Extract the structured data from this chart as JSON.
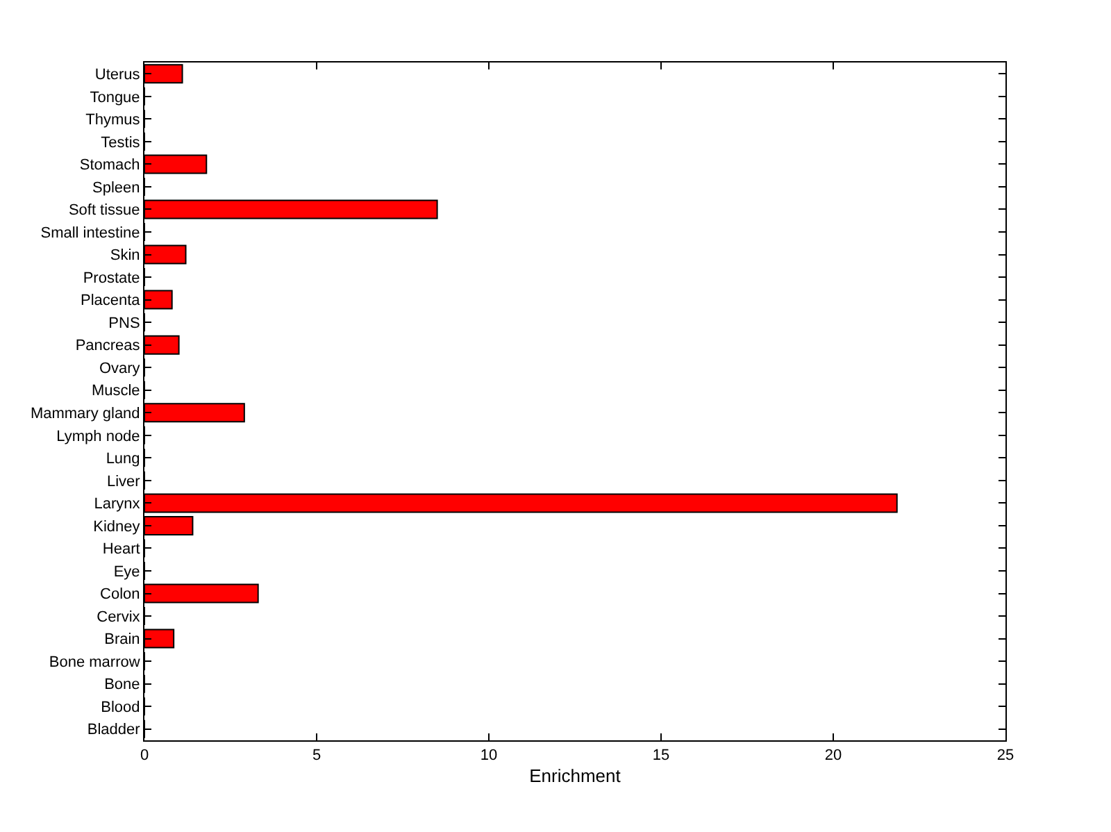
{
  "chart_data": {
    "type": "bar",
    "orientation": "horizontal",
    "xlabel": "Enrichment",
    "categories": [
      "Uterus",
      "Tongue",
      "Thymus",
      "Testis",
      "Stomach",
      "Spleen",
      "Soft tissue",
      "Small intestine",
      "Skin",
      "Prostate",
      "Placenta",
      "PNS",
      "Pancreas",
      "Ovary",
      "Muscle",
      "Mammary gland",
      "Lymph node",
      "Lung",
      "Liver",
      "Larynx",
      "Kidney",
      "Heart",
      "Eye",
      "Colon",
      "Cervix",
      "Brain",
      "Bone marrow",
      "Bone",
      "Blood",
      "Bladder"
    ],
    "values": [
      1.1,
      0,
      0,
      0,
      1.8,
      0,
      8.5,
      0,
      1.2,
      0,
      0.8,
      0,
      1.0,
      0,
      0,
      2.9,
      0,
      0,
      0,
      21.85,
      1.4,
      0,
      0,
      3.3,
      0,
      0.85,
      0,
      0,
      0,
      0
    ],
    "color": "#ff0000",
    "xlim": [
      0,
      25
    ],
    "xticks": [
      0,
      5,
      10,
      15,
      20,
      25
    ]
  }
}
